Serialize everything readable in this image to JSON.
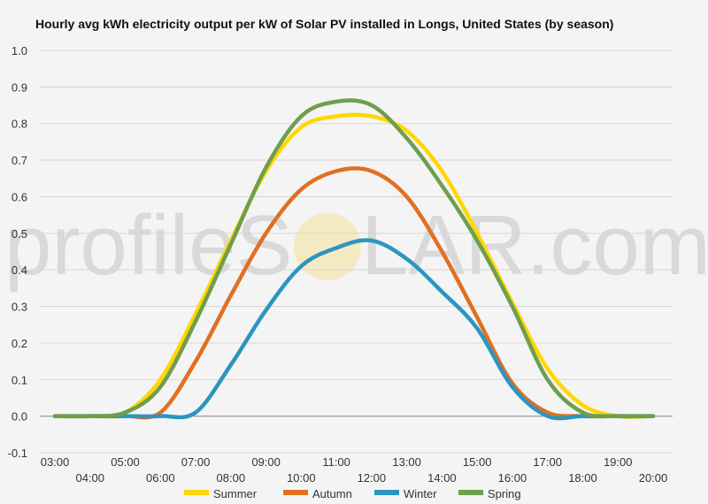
{
  "chart_data": {
    "type": "line",
    "title": "Hourly avg kWh electricity output per kW of Solar PV installed in Longs, United States (by season)",
    "xlabel": "",
    "ylabel": "",
    "ylim": [
      -0.1,
      1.0
    ],
    "yticks": [
      "1.0",
      "0.9",
      "0.8",
      "0.7",
      "0.6",
      "0.5",
      "0.4",
      "0.3",
      "0.2",
      "0.1",
      "0.0",
      "-0.1"
    ],
    "x": [
      "03:00",
      "04:00",
      "05:00",
      "06:00",
      "07:00",
      "08:00",
      "09:00",
      "10:00",
      "11:00",
      "12:00",
      "13:00",
      "14:00",
      "15:00",
      "16:00",
      "17:00",
      "18:00",
      "19:00",
      "20:00"
    ],
    "grid": true,
    "legend": "bottom",
    "series": [
      {
        "name": "Summer",
        "color": "#FFD700",
        "values": [
          0.0,
          0.0,
          0.01,
          0.1,
          0.28,
          0.48,
          0.67,
          0.79,
          0.82,
          0.82,
          0.78,
          0.67,
          0.5,
          0.31,
          0.13,
          0.03,
          0.0,
          0.0
        ]
      },
      {
        "name": "Autumn",
        "color": "#E07020",
        "values": [
          0.0,
          0.0,
          0.0,
          0.01,
          0.15,
          0.33,
          0.5,
          0.62,
          0.67,
          0.67,
          0.6,
          0.45,
          0.27,
          0.09,
          0.01,
          0.0,
          0.0,
          0.0
        ]
      },
      {
        "name": "Winter",
        "color": "#2A96C0",
        "values": [
          0.0,
          0.0,
          0.0,
          0.0,
          0.01,
          0.14,
          0.29,
          0.41,
          0.46,
          0.48,
          0.43,
          0.34,
          0.24,
          0.08,
          0.0,
          0.0,
          0.0,
          0.0
        ]
      },
      {
        "name": "Spring",
        "color": "#6E9E4E",
        "values": [
          0.0,
          0.0,
          0.01,
          0.08,
          0.26,
          0.47,
          0.68,
          0.82,
          0.86,
          0.85,
          0.76,
          0.63,
          0.48,
          0.3,
          0.1,
          0.01,
          0.0,
          0.0
        ]
      }
    ]
  },
  "watermark": {
    "part1": "profileS",
    "part2": "LAR.com",
    "sun_color": "#F5E6B0"
  }
}
